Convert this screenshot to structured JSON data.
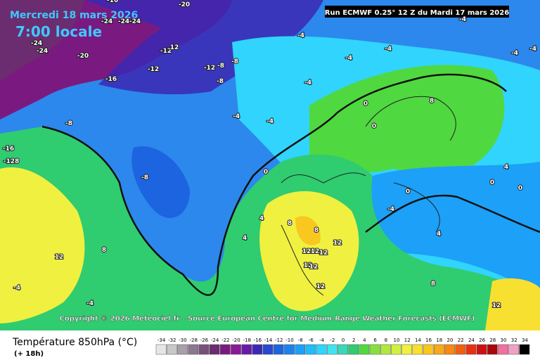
{
  "header": {
    "date": "Mercredi 18 mars 2026",
    "time": "7:00 locale",
    "run": "Run ECMWF 0.25° 12 Z du Mardi 17 mars 2026",
    "copyright": "Copyright © 2026 Meteociel.fr - Source European Centre for Medium-Range Weather Forecasts (ECMWF)"
  },
  "legend": {
    "title": "Température 850hPa (°C)",
    "subtitle": "(+ 18h)",
    "values": [
      -34,
      -32,
      -30,
      -28,
      -26,
      -24,
      -22,
      -20,
      -18,
      -16,
      -14,
      -12,
      -10,
      -8,
      -6,
      -4,
      -2,
      0,
      2,
      4,
      6,
      8,
      10,
      12,
      14,
      16,
      18,
      20,
      22,
      24,
      26,
      28,
      30,
      32,
      34
    ],
    "colors": [
      "#e6e6e6",
      "#c8c8c8",
      "#a8a0a8",
      "#8c7890",
      "#78507c",
      "#6c2c70",
      "#7a1a80",
      "#8a1a96",
      "#6a1aa8",
      "#3c28b4",
      "#2848d0",
      "#1c64e0",
      "#1c82f0",
      "#1ca0f8",
      "#20bcfc",
      "#30d4fc",
      "#40e4f0",
      "#38d8b8",
      "#30cc70",
      "#50d840",
      "#88e040",
      "#b0e840",
      "#d0f040",
      "#f0f040",
      "#f8e030",
      "#f8c820",
      "#f8a818",
      "#f88810",
      "#f06010",
      "#e83010",
      "#d01010",
      "#a80808",
      "#f070a0",
      "#f0a0c8",
      "#000000"
    ]
  },
  "map_labels": [
    "-20",
    "-16",
    "-24",
    "-24",
    "-24",
    "-24",
    "-24",
    "-20",
    "-12",
    "12",
    "-12",
    "-16",
    "-12",
    "-8",
    "-8",
    "-8",
    "-4",
    "-4",
    "-4",
    "-4",
    "-4",
    "-4",
    "-4",
    "-4",
    "-4",
    "-8",
    "-16",
    "-128",
    "-8",
    "0",
    "0",
    "0",
    "0",
    "4",
    "4",
    "4",
    "8",
    "8",
    "8",
    "12",
    "12",
    "12",
    "12",
    "12",
    "12",
    "12",
    "12",
    "-4",
    "-4",
    "-4",
    "0",
    "0",
    "0",
    "4",
    "8",
    "8",
    "12"
  ]
}
